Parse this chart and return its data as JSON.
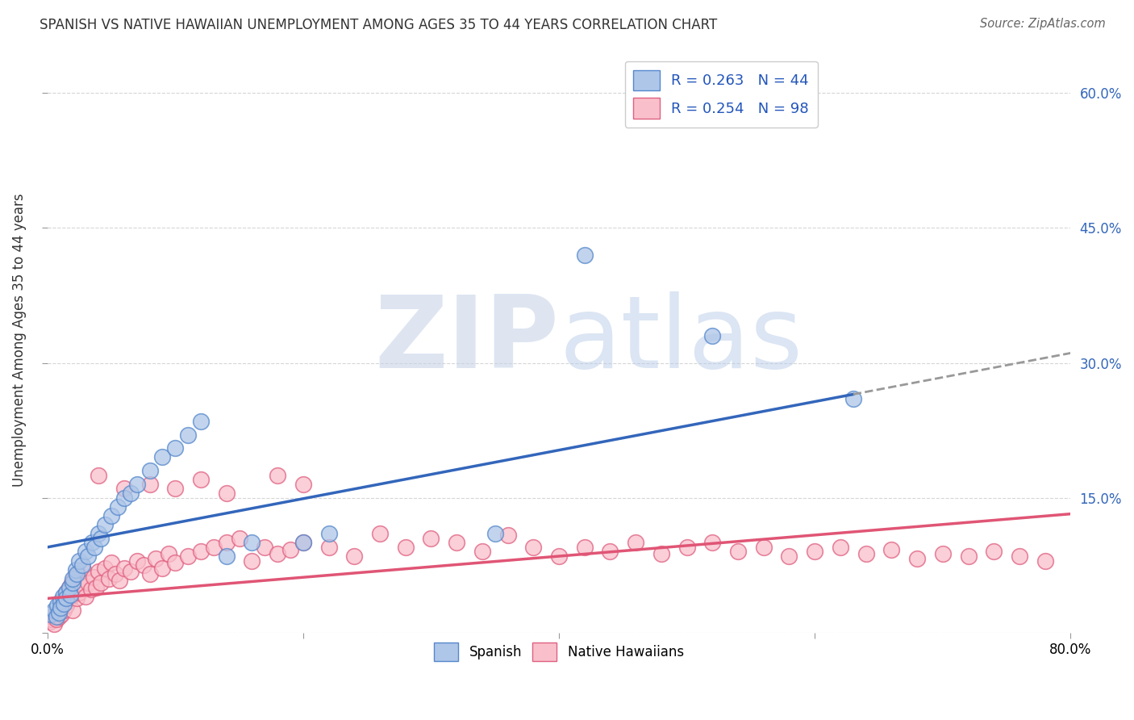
{
  "title": "SPANISH VS NATIVE HAWAIIAN UNEMPLOYMENT AMONG AGES 35 TO 44 YEARS CORRELATION CHART",
  "source": "Source: ZipAtlas.com",
  "ylabel": "Unemployment Among Ages 35 to 44 years",
  "xlim": [
    0.0,
    0.8
  ],
  "ylim": [
    0.0,
    0.65
  ],
  "color_spanish_fill": "#aec6e8",
  "color_spanish_edge": "#5588cc",
  "color_hawaiian_fill": "#f9c0cb",
  "color_hawaiian_edge": "#e06080",
  "color_spanish_line": "#3366bb",
  "color_hawaiian_line": "#e05575",
  "color_trend_ext": "#999999",
  "sp_line_x_end": 0.63,
  "sp_line_x_start": 0.0,
  "sp_line_y_start": 0.095,
  "sp_line_y_end": 0.265,
  "hw_line_x_start": 0.0,
  "hw_line_x_end": 0.8,
  "hw_line_y_start": 0.038,
  "hw_line_y_end": 0.132,
  "spanish_x": [
    0.003,
    0.005,
    0.007,
    0.008,
    0.009,
    0.01,
    0.01,
    0.012,
    0.013,
    0.015,
    0.015,
    0.017,
    0.018,
    0.02,
    0.02,
    0.022,
    0.023,
    0.025,
    0.027,
    0.03,
    0.032,
    0.035,
    0.037,
    0.04,
    0.042,
    0.045,
    0.05,
    0.055,
    0.06,
    0.065,
    0.07,
    0.08,
    0.09,
    0.1,
    0.11,
    0.12,
    0.14,
    0.16,
    0.2,
    0.22,
    0.35,
    0.42,
    0.52,
    0.63
  ],
  "spanish_y": [
    0.02,
    0.025,
    0.018,
    0.03,
    0.022,
    0.035,
    0.028,
    0.04,
    0.032,
    0.045,
    0.038,
    0.05,
    0.042,
    0.055,
    0.06,
    0.07,
    0.065,
    0.08,
    0.075,
    0.09,
    0.085,
    0.1,
    0.095,
    0.11,
    0.105,
    0.12,
    0.13,
    0.14,
    0.15,
    0.155,
    0.165,
    0.18,
    0.195,
    0.205,
    0.22,
    0.235,
    0.085,
    0.1,
    0.1,
    0.11,
    0.11,
    0.42,
    0.33,
    0.26
  ],
  "hawaiian_x": [
    0.002,
    0.003,
    0.004,
    0.005,
    0.006,
    0.007,
    0.008,
    0.009,
    0.01,
    0.01,
    0.011,
    0.012,
    0.013,
    0.014,
    0.015,
    0.015,
    0.016,
    0.017,
    0.018,
    0.019,
    0.02,
    0.02,
    0.021,
    0.022,
    0.023,
    0.024,
    0.025,
    0.026,
    0.027,
    0.028,
    0.03,
    0.032,
    0.034,
    0.036,
    0.038,
    0.04,
    0.042,
    0.045,
    0.048,
    0.05,
    0.053,
    0.056,
    0.06,
    0.065,
    0.07,
    0.075,
    0.08,
    0.085,
    0.09,
    0.095,
    0.1,
    0.11,
    0.12,
    0.13,
    0.14,
    0.15,
    0.16,
    0.17,
    0.18,
    0.19,
    0.2,
    0.22,
    0.24,
    0.26,
    0.28,
    0.3,
    0.32,
    0.34,
    0.36,
    0.38,
    0.4,
    0.42,
    0.44,
    0.46,
    0.48,
    0.5,
    0.52,
    0.54,
    0.56,
    0.58,
    0.6,
    0.62,
    0.64,
    0.66,
    0.68,
    0.7,
    0.72,
    0.74,
    0.76,
    0.78,
    0.18,
    0.2,
    0.04,
    0.06,
    0.08,
    0.1,
    0.12,
    0.14
  ],
  "hawaiian_y": [
    0.012,
    0.015,
    0.018,
    0.01,
    0.02,
    0.015,
    0.022,
    0.018,
    0.025,
    0.03,
    0.02,
    0.035,
    0.025,
    0.04,
    0.03,
    0.045,
    0.035,
    0.05,
    0.038,
    0.055,
    0.025,
    0.042,
    0.06,
    0.048,
    0.038,
    0.065,
    0.045,
    0.055,
    0.052,
    0.07,
    0.04,
    0.055,
    0.048,
    0.062,
    0.05,
    0.068,
    0.055,
    0.072,
    0.06,
    0.078,
    0.065,
    0.058,
    0.072,
    0.068,
    0.08,
    0.075,
    0.065,
    0.082,
    0.072,
    0.088,
    0.078,
    0.085,
    0.09,
    0.095,
    0.1,
    0.105,
    0.08,
    0.095,
    0.088,
    0.092,
    0.1,
    0.095,
    0.085,
    0.11,
    0.095,
    0.105,
    0.1,
    0.09,
    0.108,
    0.095,
    0.085,
    0.095,
    0.09,
    0.1,
    0.088,
    0.095,
    0.1,
    0.09,
    0.095,
    0.085,
    0.09,
    0.095,
    0.088,
    0.092,
    0.082,
    0.088,
    0.085,
    0.09,
    0.085,
    0.08,
    0.175,
    0.165,
    0.175,
    0.16,
    0.165,
    0.16,
    0.17,
    0.155
  ]
}
